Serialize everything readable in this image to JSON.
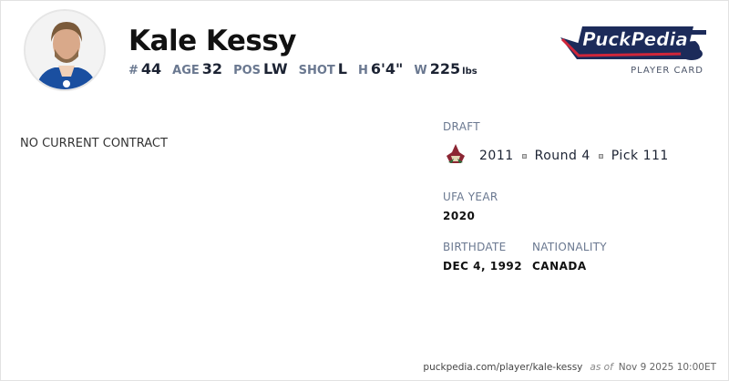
{
  "player": {
    "name": "Kale Kessy",
    "number": "44",
    "age": "32",
    "position": "LW",
    "shot": "L",
    "height": "6'4\"",
    "weight": "225",
    "weight_unit": "lbs"
  },
  "labels": {
    "number": "#",
    "age": "AGE",
    "position": "POS",
    "shot": "SHOT",
    "height": "H",
    "weight": "W"
  },
  "brand": {
    "logo_text": "PuckPedia",
    "subtitle": "PLAYER CARD",
    "colors": {
      "navy": "#1c2b5a",
      "red": "#d0263a"
    }
  },
  "contract": {
    "status": "NO CURRENT CONTRACT"
  },
  "draft": {
    "label": "DRAFT",
    "team_logo": "coyotes-logo",
    "year": "2011",
    "round": "Round 4",
    "pick": "Pick 111"
  },
  "ufa": {
    "label": "UFA YEAR",
    "value": "2020"
  },
  "birthdate": {
    "label": "BIRTHDATE",
    "value": "DEC 4, 1992"
  },
  "nationality": {
    "label": "NATIONALITY",
    "value": "CANADA"
  },
  "footer": {
    "url": "puckpedia.com/player/kale-kessy",
    "as_of": "as of",
    "timestamp": "Nov 9 2025 10:00ET"
  }
}
